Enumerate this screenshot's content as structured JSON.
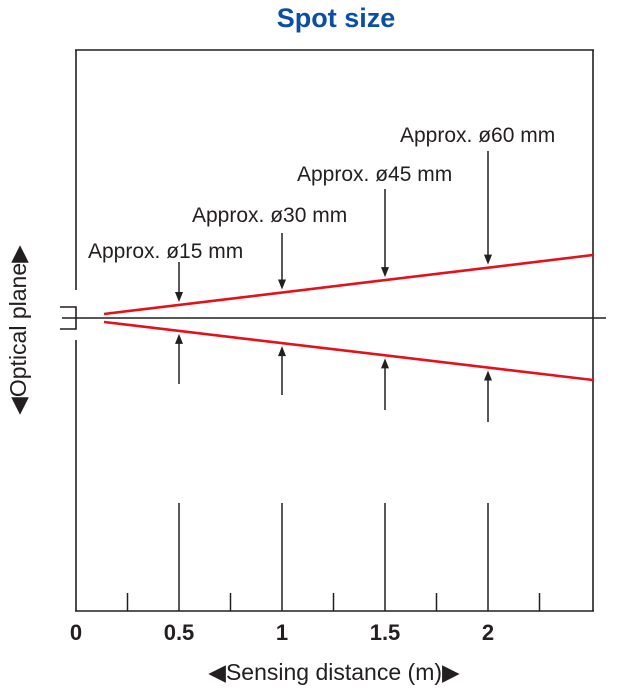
{
  "title": "Spot size",
  "y_axis_label": "◀Optical plane▶",
  "x_axis_label": "◀Sensing distance (m)▶",
  "x_ticks": [
    {
      "label": "0",
      "value": 0
    },
    {
      "label": "0.5",
      "value": 0.5
    },
    {
      "label": "1",
      "value": 1
    },
    {
      "label": "1.5",
      "value": 1.5
    },
    {
      "label": "2",
      "value": 2
    }
  ],
  "minor_ticks": [
    0.25,
    0.75,
    1.25,
    1.75,
    2.25
  ],
  "annotations": [
    {
      "label": "Approx. ø15 mm",
      "distance": 0.5
    },
    {
      "label": "Approx. ø30 mm",
      "distance": 1
    },
    {
      "label": "Approx. ø45 mm",
      "distance": 1.5
    },
    {
      "label": "Approx. ø60 mm",
      "distance": 2
    }
  ],
  "colors": {
    "title": "#0b4ea2",
    "beam": "#e3111b",
    "lines": "#231f20"
  }
}
